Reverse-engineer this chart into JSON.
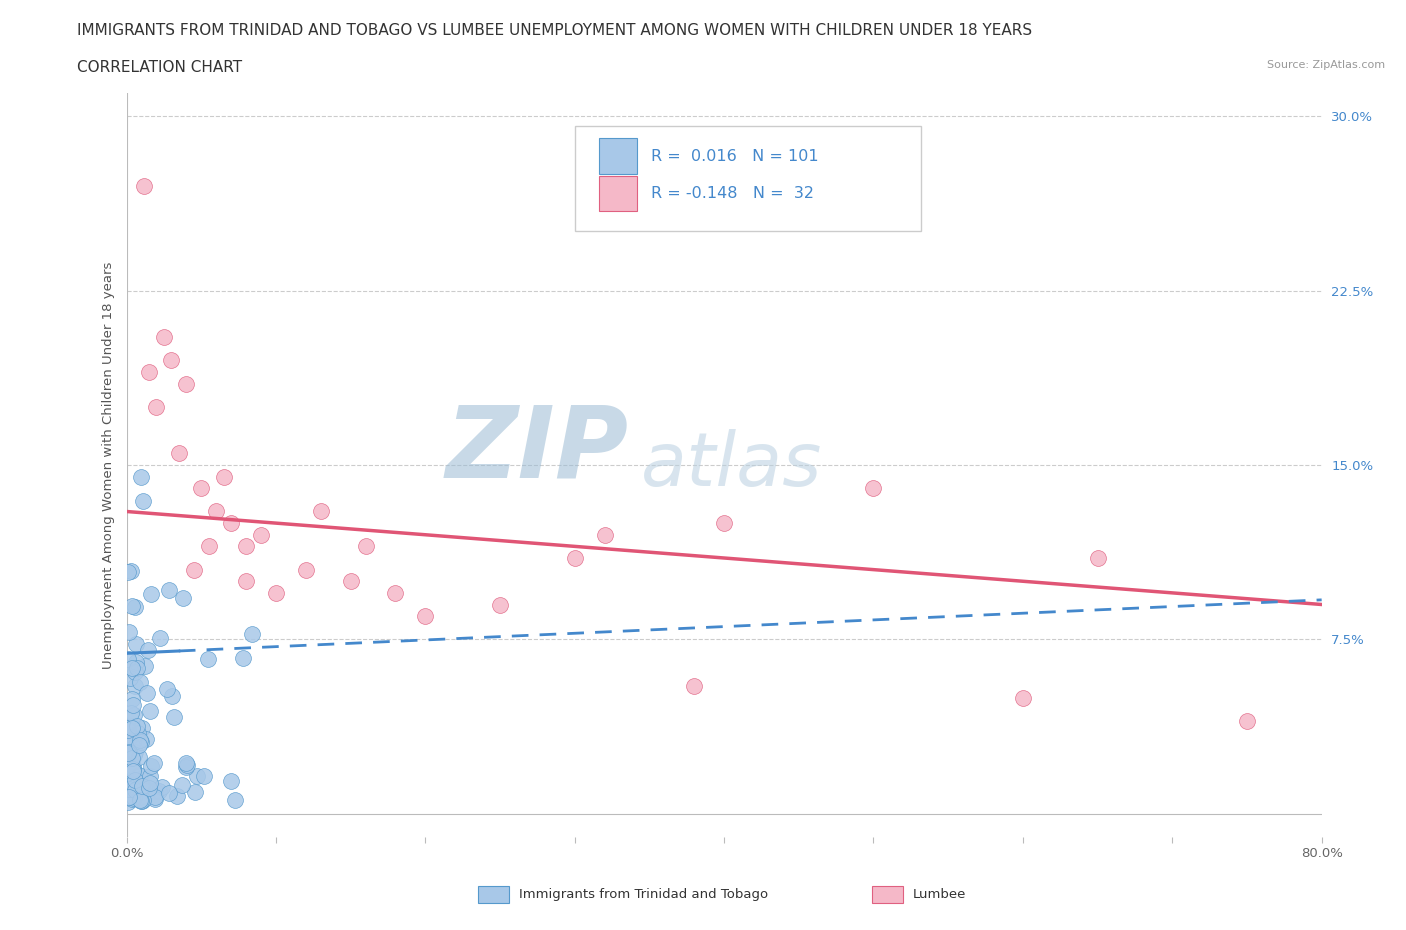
{
  "title_line1": "IMMIGRANTS FROM TRINIDAD AND TOBAGO VS LUMBEE UNEMPLOYMENT AMONG WOMEN WITH CHILDREN UNDER 18 YEARS",
  "title_line2": "CORRELATION CHART",
  "source_text": "Source: ZipAtlas.com",
  "watermark_zip": "ZIP",
  "watermark_atlas": "atlas",
  "ylabel": "Unemployment Among Women with Children Under 18 years",
  "xlim": [
    0.0,
    0.8
  ],
  "ylim": [
    -0.01,
    0.31
  ],
  "ytick_positions": [
    0.075,
    0.15,
    0.225,
    0.3
  ],
  "ytick_labels": [
    "7.5%",
    "15.0%",
    "22.5%",
    "30.0%"
  ],
  "blue_scatter_color": "#a8c8e8",
  "blue_edge_color": "#5599cc",
  "pink_scatter_color": "#f5b8c8",
  "pink_edge_color": "#e06080",
  "blue_line_color": "#4488cc",
  "pink_line_color": "#e05575",
  "grid_color": "#cccccc",
  "background_color": "#ffffff",
  "title_color": "#333333",
  "title_fontsize": 11.0,
  "axis_label_fontsize": 9.5,
  "tick_label_fontsize": 9.5,
  "legend_fontsize": 11.5,
  "watermark_color_zip": "#b0cce0",
  "watermark_color_atlas": "#c0d8ec",
  "watermark_fontsize": 72,
  "r_blue": 0.016,
  "n_blue": 101,
  "r_pink": -0.148,
  "n_pink": 32,
  "pink_trend_x0": 0.0,
  "pink_trend_y0": 0.13,
  "pink_trend_x1": 0.8,
  "pink_trend_y1": 0.09,
  "blue_trend_x0": 0.0,
  "blue_trend_y0": 0.069,
  "blue_trend_x1": 0.8,
  "blue_trend_y1": 0.092
}
